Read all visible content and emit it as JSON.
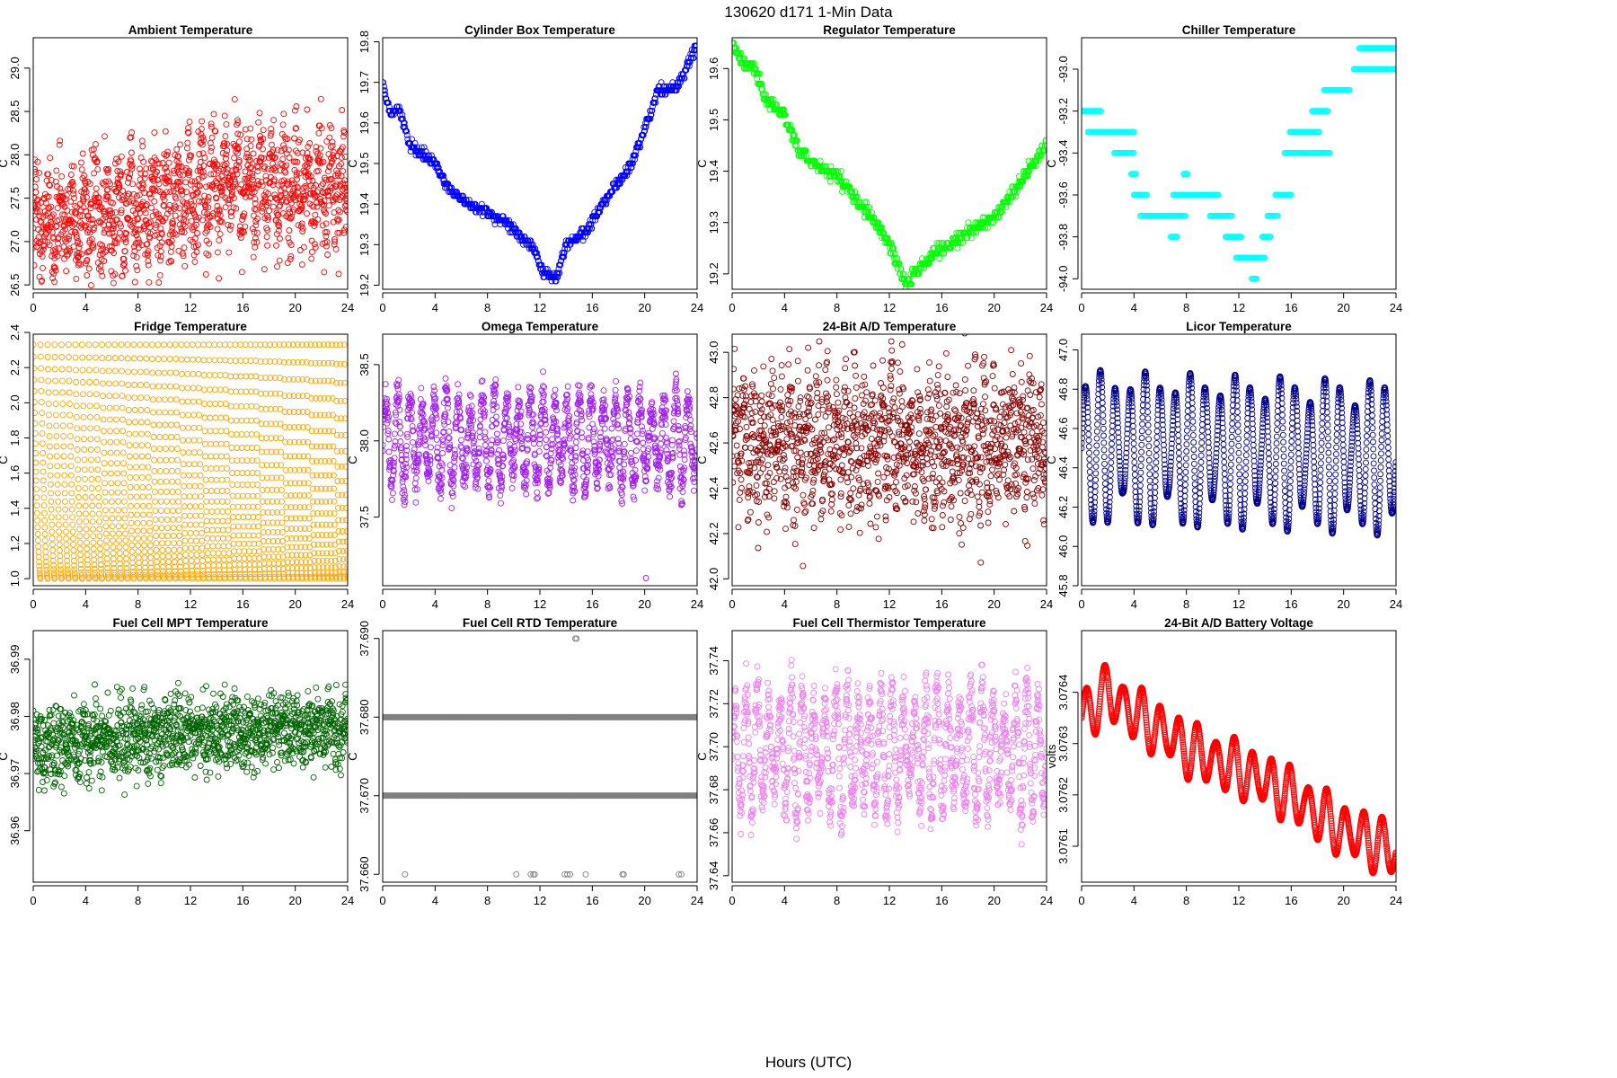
{
  "figure": {
    "suptitle": "130620    d171    1-Min Data",
    "xlabel": "Hours (UTC)"
  },
  "chart_data": [
    {
      "type": "scatter",
      "title": "Ambient Temperature",
      "ylabel": "C",
      "color": "#ff0000",
      "xlim": [
        0,
        24
      ],
      "ylim": [
        26.45,
        29.35
      ],
      "xticks": [
        0,
        4,
        8,
        12,
        16,
        20,
        24
      ],
      "yticks": [
        26.5,
        27.0,
        27.5,
        28.0,
        28.5,
        29.0
      ],
      "ydec": 1,
      "pattern": "noisy",
      "keys": [
        [
          0,
          27.2
        ],
        [
          6,
          27.3
        ],
        [
          12,
          27.5
        ],
        [
          16,
          27.7
        ],
        [
          20,
          27.6
        ],
        [
          24,
          27.6
        ]
      ],
      "amp": 0.55,
      "noise": 0.55
    },
    {
      "type": "scatter",
      "title": "Cylinder Box Temperature",
      "ylabel": "C",
      "color": "#0000ff",
      "xlim": [
        0,
        24
      ],
      "ylim": [
        19.19,
        19.81
      ],
      "xticks": [
        0,
        4,
        8,
        12,
        16,
        20,
        24
      ],
      "yticks": [
        19.2,
        19.3,
        19.4,
        19.5,
        19.6,
        19.7,
        19.8
      ],
      "ydec": 1,
      "pattern": "step",
      "step": 0.01,
      "keys": [
        [
          0,
          19.7
        ],
        [
          0.6,
          19.62
        ],
        [
          1.2,
          19.64
        ],
        [
          2,
          19.55
        ],
        [
          4,
          19.5
        ],
        [
          5,
          19.44
        ],
        [
          6.5,
          19.4
        ],
        [
          8,
          19.38
        ],
        [
          10,
          19.34
        ],
        [
          11.5,
          19.29
        ],
        [
          12.3,
          19.23
        ],
        [
          13.3,
          19.22
        ],
        [
          14,
          19.3
        ],
        [
          15.5,
          19.33
        ],
        [
          17,
          19.41
        ],
        [
          19,
          19.5
        ],
        [
          20.5,
          19.63
        ],
        [
          21,
          19.68
        ],
        [
          22.5,
          19.69
        ],
        [
          24,
          19.79
        ]
      ]
    },
    {
      "type": "scatter",
      "title": "Regulator Temperature",
      "ylabel": "C",
      "color": "#00ff00",
      "xlim": [
        0,
        24
      ],
      "ylim": [
        19.17,
        19.66
      ],
      "xticks": [
        0,
        4,
        8,
        12,
        16,
        20,
        24
      ],
      "yticks": [
        19.2,
        19.3,
        19.4,
        19.5,
        19.6
      ],
      "ydec": 1,
      "pattern": "step",
      "step": 0.01,
      "keys": [
        [
          0,
          19.65
        ],
        [
          0.8,
          19.61
        ],
        [
          1.8,
          19.6
        ],
        [
          2.5,
          19.54
        ],
        [
          4,
          19.51
        ],
        [
          5,
          19.44
        ],
        [
          6.5,
          19.41
        ],
        [
          8,
          19.39
        ],
        [
          10,
          19.33
        ],
        [
          11.5,
          19.28
        ],
        [
          12.3,
          19.24
        ],
        [
          13.3,
          19.18
        ],
        [
          14.5,
          19.22
        ],
        [
          16,
          19.25
        ],
        [
          18,
          19.28
        ],
        [
          20,
          19.31
        ],
        [
          22,
          19.38
        ],
        [
          24,
          19.45
        ]
      ]
    },
    {
      "type": "scatter",
      "title": "Chiller Temperature",
      "ylabel": "C",
      "color": "#00ffff",
      "xlim": [
        0,
        24
      ],
      "ylim": [
        -94.05,
        -92.85
      ],
      "xticks": [
        0,
        4,
        8,
        12,
        16,
        20,
        24
      ],
      "yticks": [
        -94.0,
        -93.8,
        -93.6,
        -93.4,
        -93.2,
        -93.0
      ],
      "ydec": 1,
      "pattern": "levels",
      "segs": [
        [
          0,
          1.5,
          -93.2
        ],
        [
          0.5,
          4,
          -93.3
        ],
        [
          2.5,
          4,
          -93.4
        ],
        [
          3.8,
          4.2,
          -93.5
        ],
        [
          4,
          5,
          -93.6
        ],
        [
          4.5,
          8,
          -93.7
        ],
        [
          6.8,
          7.3,
          -93.8
        ],
        [
          7,
          10.5,
          -93.6
        ],
        [
          7.8,
          8.1,
          -93.5
        ],
        [
          9.8,
          11.5,
          -93.7
        ],
        [
          11,
          12.2,
          -93.8
        ],
        [
          11.8,
          14,
          -93.9
        ],
        [
          13,
          13.4,
          -94.0
        ],
        [
          13.8,
          14.5,
          -93.8
        ],
        [
          14.2,
          15,
          -93.7
        ],
        [
          14.8,
          16,
          -93.6
        ],
        [
          15.5,
          19,
          -93.4
        ],
        [
          15.9,
          18.2,
          -93.3
        ],
        [
          17.6,
          18.8,
          -93.2
        ],
        [
          18.5,
          20.5,
          -93.1
        ],
        [
          20.8,
          22,
          -93.0
        ],
        [
          21.2,
          24,
          -92.9
        ],
        [
          22,
          24,
          -93.0
        ]
      ]
    },
    {
      "type": "scatter",
      "title": "Fridge Temperature",
      "ylabel": "C",
      "color": "#ffa500",
      "xlim": [
        0,
        24
      ],
      "ylim": [
        0.96,
        2.39
      ],
      "xticks": [
        0,
        4,
        8,
        12,
        16,
        20,
        24
      ],
      "yticks": [
        1.0,
        1.2,
        1.4,
        1.6,
        1.8,
        2.0,
        2.2,
        2.4
      ],
      "ydec": 1,
      "pattern": "sawtooth",
      "low": 1.0,
      "high": 2.33
    },
    {
      "type": "scatter",
      "title": "Omega Temperature",
      "ylabel": "C",
      "color": "#a020f0",
      "xlim": [
        0,
        24
      ],
      "ylim": [
        37.05,
        38.7
      ],
      "xticks": [
        0,
        4,
        8,
        12,
        16,
        20,
        24
      ],
      "yticks": [
        37.5,
        38.0,
        38.5
      ],
      "ydec": 1,
      "pattern": "wave",
      "keys": [
        [
          0,
          38.0
        ],
        [
          24,
          38.0
        ]
      ],
      "amp": 0.32,
      "noise": 0.06,
      "waves": 26,
      "outliers": [
        [
          20.1,
          37.1
        ]
      ]
    },
    {
      "type": "scatter",
      "title": "24-Bit A/D Temperature",
      "ylabel": "C",
      "color": "#8b0000",
      "xlim": [
        0,
        24
      ],
      "ylim": [
        41.97,
        43.08
      ],
      "xticks": [
        0,
        4,
        8,
        12,
        16,
        20,
        24
      ],
      "yticks": [
        42.0,
        42.2,
        42.4,
        42.6,
        42.8,
        43.0
      ],
      "ydec": 1,
      "pattern": "wave",
      "keys": [
        [
          0,
          42.6
        ],
        [
          24,
          42.6
        ]
      ],
      "amp": 0.17,
      "noise": 0.14,
      "waves": 34
    },
    {
      "type": "scatter",
      "title": "Licor Temperature",
      "ylabel": "C",
      "color": "#00008b",
      "xlim": [
        0,
        24
      ],
      "ylim": [
        45.8,
        47.08
      ],
      "xticks": [
        0,
        4,
        8,
        12,
        16,
        20,
        24
      ],
      "yticks": [
        45.8,
        46.0,
        46.2,
        46.4,
        46.6,
        46.8,
        47.0
      ],
      "ydec": 1,
      "pattern": "wave",
      "keys": [
        [
          0,
          46.5
        ],
        [
          24,
          46.45
        ]
      ],
      "amp": 0.4,
      "noise": 0.0,
      "waves": 21
    },
    {
      "type": "scatter",
      "title": "Fuel Cell MPT Temperature",
      "ylabel": "C",
      "color": "#006400",
      "xlim": [
        0,
        24
      ],
      "ylim": [
        36.951,
        36.995
      ],
      "xticks": [
        0,
        4,
        8,
        12,
        16,
        20,
        24
      ],
      "yticks": [
        36.96,
        36.97,
        36.98,
        36.99
      ],
      "ydec": 2,
      "pattern": "noisy",
      "keys": [
        [
          0,
          36.975
        ],
        [
          12,
          36.977
        ],
        [
          24,
          36.978
        ]
      ],
      "amp": 0.002,
      "noise": 0.006
    },
    {
      "type": "scatter",
      "title": "Fuel Cell RTD Temperature",
      "ylabel": "C",
      "color": "#808080",
      "xlim": [
        0,
        24
      ],
      "ylim": [
        37.659,
        37.691
      ],
      "xticks": [
        0,
        4,
        8,
        12,
        16,
        20,
        24
      ],
      "yticks": [
        37.66,
        37.67,
        37.68,
        37.69
      ],
      "ydec": 3,
      "pattern": "discrete",
      "levels": [
        37.68,
        37.67
      ],
      "rare": [
        [
          1.7,
          37.66
        ],
        [
          10.2,
          37.66
        ],
        [
          11.3,
          37.66
        ],
        [
          11.5,
          37.66
        ],
        [
          11.6,
          37.66
        ],
        [
          13.9,
          37.66
        ],
        [
          14.1,
          37.66
        ],
        [
          14.3,
          37.66
        ],
        [
          15.5,
          37.66
        ],
        [
          18.3,
          37.66
        ],
        [
          18.4,
          37.66
        ],
        [
          22.6,
          37.66
        ],
        [
          22.8,
          37.66
        ],
        [
          14.7,
          37.69
        ],
        [
          14.8,
          37.69
        ]
      ]
    },
    {
      "type": "scatter",
      "title": "Fuel Cell Thermistor Temperature",
      "ylabel": "C",
      "color": "#ee82ee",
      "xlim": [
        0,
        24
      ],
      "ylim": [
        37.637,
        37.754
      ],
      "xticks": [
        0,
        4,
        8,
        12,
        16,
        20,
        24
      ],
      "yticks": [
        37.64,
        37.66,
        37.68,
        37.7,
        37.72,
        37.74
      ],
      "ydec": 2,
      "pattern": "wave",
      "keys": [
        [
          0,
          37.698
        ],
        [
          24,
          37.698
        ]
      ],
      "amp": 0.03,
      "noise": 0.006,
      "waves": 28
    },
    {
      "type": "scatter",
      "title": "24-Bit A/D Battery Voltage",
      "ylabel": "volts",
      "color": "#ff0000",
      "xlim": [
        0,
        24
      ],
      "ylim": [
        3.07603,
        3.07652
      ],
      "xticks": [
        0,
        4,
        8,
        12,
        16,
        20,
        24
      ],
      "yticks": [
        3.0761,
        3.0762,
        3.0763,
        3.0764
      ],
      "ydec": 4,
      "pattern": "wave",
      "keys": [
        [
          0,
          3.07635
        ],
        [
          2,
          3.0764
        ],
        [
          4,
          3.07636
        ],
        [
          8,
          3.07629
        ],
        [
          12,
          3.07625
        ],
        [
          16,
          3.0762
        ],
        [
          20,
          3.07613
        ],
        [
          24,
          3.07609
        ]
      ],
      "amp": 6e-05,
      "noise": 0.0,
      "waves": 17
    }
  ]
}
